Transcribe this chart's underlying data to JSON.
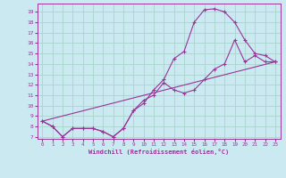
{
  "xlabel": "Windchill (Refroidissement éolien,°C)",
  "bg_color": "#cbe9f0",
  "grid_color": "#aad4cc",
  "line_color": "#993399",
  "xlim": [
    -0.5,
    23.5
  ],
  "ylim": [
    6.8,
    19.8
  ],
  "xticks": [
    0,
    1,
    2,
    3,
    4,
    5,
    6,
    7,
    8,
    9,
    10,
    11,
    12,
    13,
    14,
    15,
    16,
    17,
    18,
    19,
    20,
    21,
    22,
    23
  ],
  "yticks": [
    7,
    8,
    9,
    10,
    11,
    12,
    13,
    14,
    15,
    16,
    17,
    18,
    19
  ],
  "series1_x": [
    0,
    1,
    2,
    3,
    4,
    5,
    6,
    7,
    8,
    9,
    10,
    11,
    12,
    13,
    14,
    15,
    16,
    17,
    18,
    19,
    20,
    21,
    22,
    23
  ],
  "series1_y": [
    8.5,
    8.0,
    7.0,
    7.8,
    7.8,
    7.8,
    7.5,
    7.0,
    7.8,
    9.5,
    10.2,
    11.5,
    12.5,
    14.5,
    15.2,
    18.0,
    19.2,
    19.3,
    19.0,
    18.0,
    16.3,
    15.0,
    14.8,
    14.2
  ],
  "series2_x": [
    0,
    1,
    2,
    3,
    4,
    5,
    6,
    7,
    8,
    9,
    10,
    11,
    12,
    13,
    14,
    15,
    16,
    17,
    18,
    19,
    20,
    21,
    22,
    23
  ],
  "series2_y": [
    8.5,
    8.0,
    7.0,
    7.8,
    7.8,
    7.8,
    7.5,
    7.0,
    7.8,
    9.5,
    10.5,
    11.0,
    12.2,
    11.5,
    11.2,
    11.5,
    12.5,
    13.5,
    14.0,
    16.3,
    14.2,
    14.8,
    14.2,
    14.2
  ],
  "series3_x": [
    0,
    23
  ],
  "series3_y": [
    8.5,
    14.2
  ]
}
